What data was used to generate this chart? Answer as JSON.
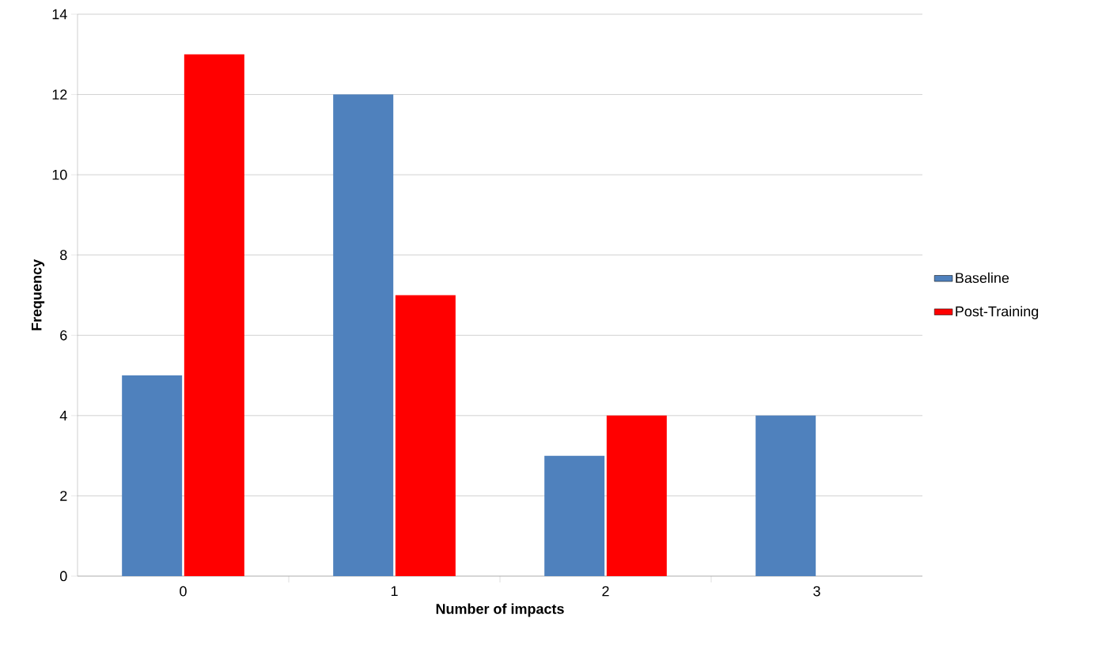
{
  "chart_data": {
    "type": "bar",
    "xlabel": "Number of impacts",
    "ylabel": "Frequency",
    "categories": [
      "0",
      "1",
      "2",
      "3"
    ],
    "series": [
      {
        "name": "Baseline",
        "color": "#4f81bd",
        "values": [
          5,
          12,
          3,
          4
        ]
      },
      {
        "name": "Post-Training",
        "color": "#ff0000",
        "values": [
          13,
          7,
          4,
          0
        ]
      }
    ],
    "ylim": [
      0,
      14
    ],
    "yticks": [
      0,
      2,
      4,
      6,
      8,
      10,
      12,
      14
    ],
    "grid": "y",
    "legend": "right"
  }
}
